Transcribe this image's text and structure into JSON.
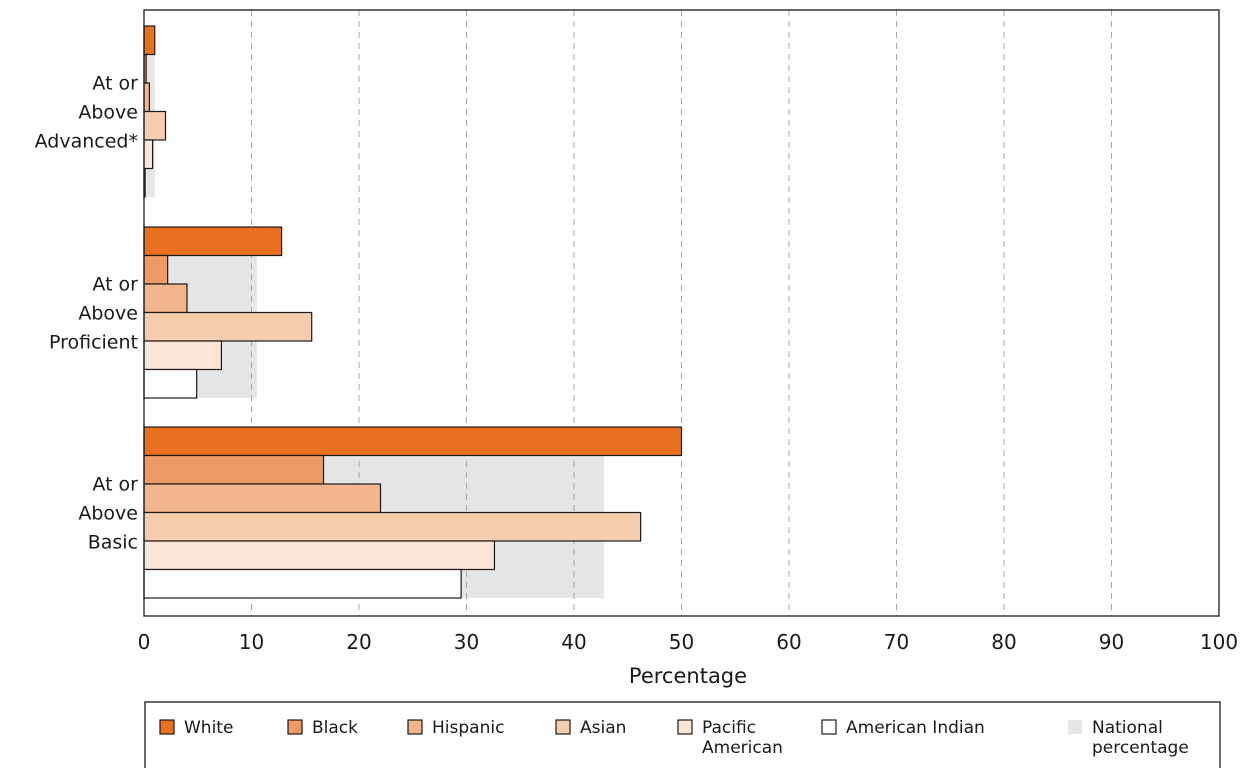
{
  "chart_data": {
    "type": "bar",
    "orientation": "horizontal",
    "xlabel": "Percentage",
    "xlim": [
      0,
      100
    ],
    "xticks": [
      "0",
      "10",
      "20",
      "30",
      "40",
      "50",
      "60",
      "70",
      "80",
      "90",
      "100"
    ],
    "grid": "vertical dashed",
    "legend_position": "bottom",
    "categories": [
      {
        "label_lines": [
          "At or",
          "Above",
          "Advanced*"
        ]
      },
      {
        "label_lines": [
          "At or",
          "Above",
          "Proficient"
        ]
      },
      {
        "label_lines": [
          "At or",
          "Above",
          "Basic"
        ]
      }
    ],
    "series": [
      {
        "name": "White",
        "color": "#E8701F",
        "values": [
          1,
          12.8,
          50
        ]
      },
      {
        "name": "Black",
        "color": "#EE9A64",
        "values": [
          0.2,
          2.2,
          16.7
        ]
      },
      {
        "name": "Hispanic",
        "color": "#F3B58B",
        "values": [
          0.5,
          4,
          22
        ]
      },
      {
        "name": "Asian",
        "color": "#F7CDAF",
        "values": [
          2,
          15.6,
          46.2
        ]
      },
      {
        "name": "Pacific American",
        "color": "#FBE5D6",
        "values": [
          0.8,
          7.2,
          32.6
        ]
      },
      {
        "name": "American Indian",
        "color": "#FFFFFF",
        "values": [
          0.1,
          4.9,
          29.5
        ]
      }
    ],
    "national": {
      "name": "National percentage",
      "color": "#E5E5E5",
      "values": [
        1,
        10.5,
        42.8
      ]
    },
    "legend": [
      {
        "lines": [
          "White"
        ],
        "color": "#E8701F"
      },
      {
        "lines": [
          "Black"
        ],
        "color": "#EE9A64"
      },
      {
        "lines": [
          "Hispanic"
        ],
        "color": "#F3B58B"
      },
      {
        "lines": [
          "Asian"
        ],
        "color": "#F7CDAF"
      },
      {
        "lines": [
          "Pacific",
          "American"
        ],
        "color": "#FBE5D6"
      },
      {
        "lines": [
          "American Indian"
        ],
        "color": "#FFFFFF"
      },
      {
        "lines": [
          "National",
          "percentage"
        ],
        "color": "#E5E5E5",
        "no_border": true
      }
    ]
  }
}
